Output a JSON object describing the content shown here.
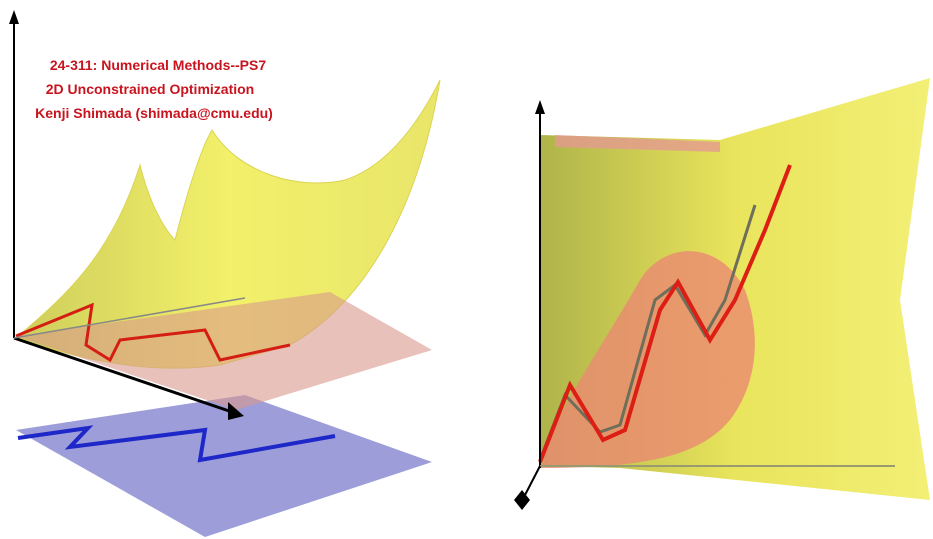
{
  "title": {
    "lines": [
      "24-311: Numerical Methods--PS7",
      "2D Unconstrained Optimization",
      "Kenji Shimada (shimada@cmu.edu)"
    ]
  }
}
